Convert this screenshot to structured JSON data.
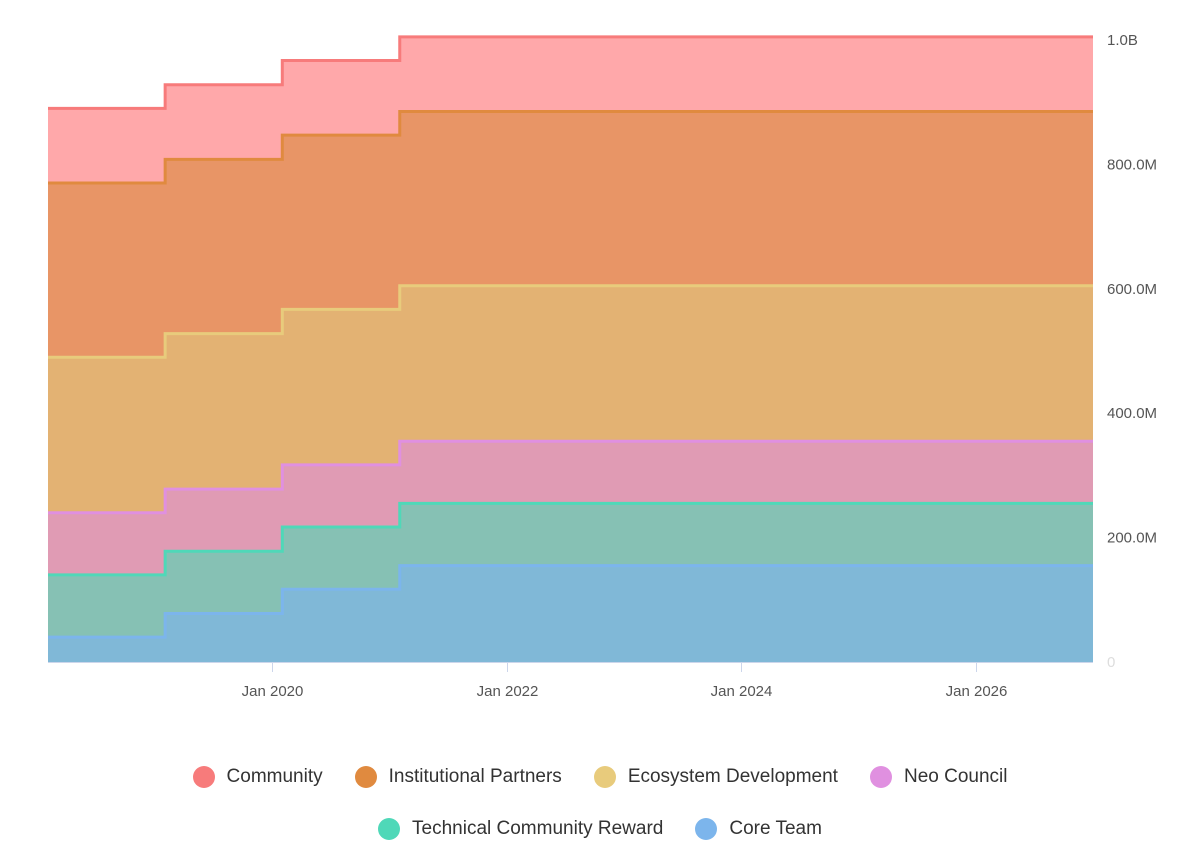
{
  "chart_data": {
    "type": "area",
    "stacked": true,
    "step": true,
    "x_axis": {
      "ticks": [
        "Jan 2020",
        "Jan 2022",
        "Jan 2024",
        "Jan 2026"
      ],
      "tick_dates": [
        "2020-01-01",
        "2022-01-01",
        "2024-01-01",
        "2026-01-01"
      ],
      "range": [
        "2018-02-01",
        "2027-01-01"
      ]
    },
    "y_axis": {
      "position": "right",
      "ticks": [
        "0",
        "200.0M",
        "400.0M",
        "600.0M",
        "800.0M",
        "1.0B"
      ],
      "tick_values": [
        0,
        200000000,
        400000000,
        600000000,
        800000000,
        1000000000
      ],
      "ylim": [
        0,
        1000000000
      ]
    },
    "x": [
      "2018-02-01",
      "2019-02-01",
      "2020-02-01",
      "2021-02-01",
      "2027-01-01"
    ],
    "series": [
      {
        "name": "Core Team",
        "color": "#7cb5ec",
        "fill": "#80b8d7",
        "values": [
          40000000,
          78000000,
          117000000,
          155000000,
          155000000
        ]
      },
      {
        "name": "Technical Community Reward",
        "color": "#4fd8b8",
        "fill": "#86c1b4",
        "values": [
          100000000,
          100000000,
          100000000,
          100000000,
          100000000
        ]
      },
      {
        "name": "Neo Council",
        "color": "#e090e0",
        "fill": "#e09bb4",
        "values": [
          100000000,
          100000000,
          100000000,
          100000000,
          100000000
        ]
      },
      {
        "name": "Ecosystem Development",
        "color": "#e8cb7c",
        "fill": "#e3b273",
        "values": [
          250000000,
          250000000,
          250000000,
          250000000,
          250000000
        ]
      },
      {
        "name": "Institutional Partners",
        "color": "#e08a3f",
        "fill": "#e89566",
        "values": [
          280000000,
          280000000,
          280000000,
          280000000,
          280000000
        ]
      },
      {
        "name": "Community",
        "color": "#f77b7b",
        "fill": "#ffa8aa",
        "values": [
          120000000,
          120000000,
          120000000,
          120000000,
          120000000
        ]
      }
    ],
    "legend": {
      "placement": "bottom",
      "rows": [
        [
          "Community",
          "Institutional Partners",
          "Ecosystem Development",
          "Neo Council"
        ],
        [
          "Technical Community Reward",
          "Core Team"
        ]
      ]
    }
  }
}
